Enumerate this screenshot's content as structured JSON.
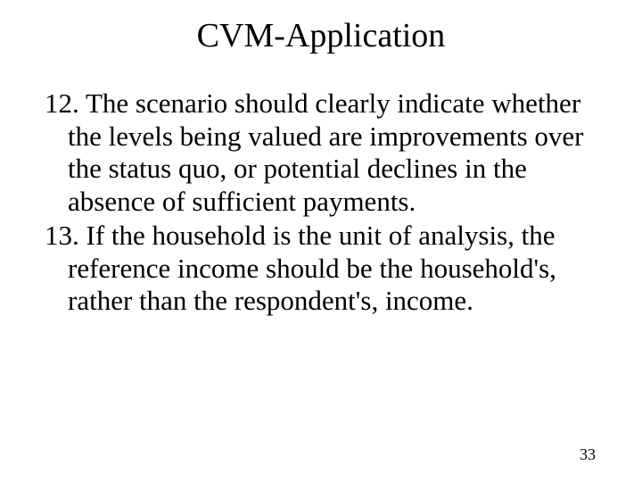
{
  "slide": {
    "title": "CVM-Application",
    "items": [
      {
        "number": "12.",
        "text": "The scenario should clearly indicate whether the levels being valued are improvements over the status quo, or potential declines in the absence of sufficient payments."
      },
      {
        "number": "13.",
        "text": "If the household is the unit of analysis, the reference income should be the household's, rather than the respondent's, income."
      }
    ],
    "page_number": "33"
  },
  "style": {
    "background_color": "#ffffff",
    "text_color": "#000000",
    "title_fontsize": 38,
    "body_fontsize": 31,
    "pagenum_fontsize": 18,
    "font_family": "Times New Roman"
  }
}
